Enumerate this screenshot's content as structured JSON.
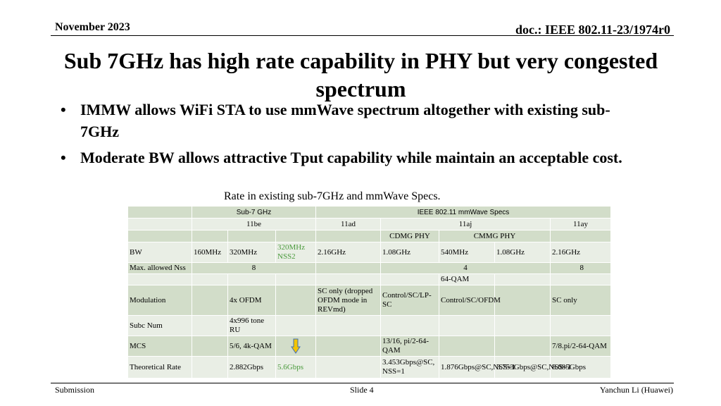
{
  "header": {
    "date": "November 2023",
    "doc": "doc.: IEEE 802.11-23/1974r0"
  },
  "title": "Sub 7GHz has high rate capability in PHY but very congested spectrum",
  "bullets": [
    "IMMW allows WiFi STA to use mmWave spectrum altogether with existing sub-7GHz",
    "Moderate BW allows attractive Tput capability while maintain an acceptable cost."
  ],
  "bullet_symbol": "•",
  "caption": "Rate in existing sub-7GHz and mmWave Specs.",
  "table": {
    "group_sub7": "Sub-7 GHz",
    "group_mmwave": "IEEE 802.11 mmWave Specs",
    "std_11be": "11be",
    "std_11ad": "11ad",
    "std_11aj": "11aj",
    "std_11ay": "11ay",
    "cdmg_phy": "CDMG PHY",
    "cmmg_phy": "CMMG PHY",
    "bw_label": "BW",
    "bw": [
      "160MHz",
      "320MHz",
      "320MHz NSS2",
      "2.16GHz",
      "1.08GHz",
      "540MHz",
      "1.08GHz",
      "2.16GHz"
    ],
    "nss_label": "Max. allowed Nss",
    "nss_11be": "8",
    "nss_11aj": "4",
    "nss_11ay": "8",
    "qam_64": "64-QAM",
    "mod_label": "Modulation",
    "mod_11be": "4x OFDM",
    "mod_11ad": "SC only (dropped OFDM mode in REVmd)",
    "mod_cdmg": "Control/SC/LP-SC",
    "mod_cmmg": "Control/SC/OFDM",
    "mod_11ay": "SC only",
    "subc_label": "Subc Num",
    "subc_11be": "4x996 tone RU",
    "mcs_label": "MCS",
    "mcs_11be": "5/6, 4k-QAM",
    "mcs_cdmg": "13/16, pi/2-64-QAM",
    "mcs_11ay": "7/8.pi/2-64-QAM",
    "rate_label": "Theoretical Rate",
    "rate_11be": "2.882Gbps",
    "rate_11be_nss2": "5.6Gbps",
    "rate_cdmg": "3.453Gbps@SC, NSS=1",
    "rate_cmmg_540": "1.876Gbps@SC,NSS=1",
    "rate_cmmg_108": "3.753Gbps@SC,NSS=1",
    "rate_11ay": "8.085Gbps"
  },
  "colors": {
    "row_dark": "#d2ddc9",
    "row_light": "#e9eee5",
    "highlight_text": "#4a9a3c",
    "arrow_fill": "#f2c400",
    "arrow_stroke": "#3f6fb8"
  },
  "footer": {
    "left": "Submission",
    "center": "Slide 4",
    "right": "Yanchun Li (Huawei)"
  }
}
